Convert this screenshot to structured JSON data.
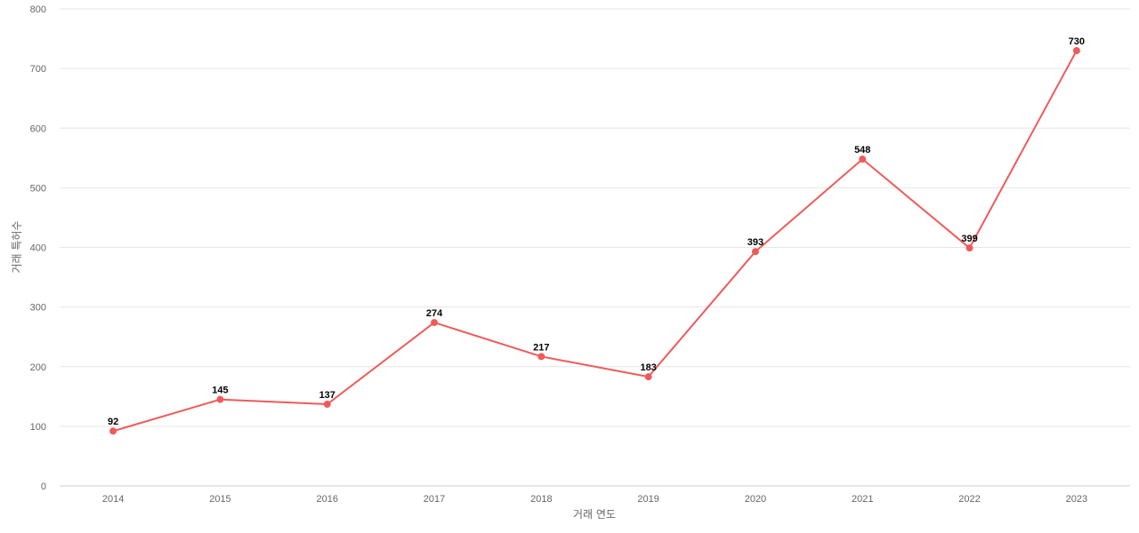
{
  "chart_data": {
    "type": "line",
    "x": [
      "2014",
      "2015",
      "2016",
      "2017",
      "2018",
      "2019",
      "2020",
      "2021",
      "2022",
      "2023"
    ],
    "series": [
      {
        "values": [
          92,
          145,
          137,
          274,
          217,
          183,
          393,
          548,
          399,
          730
        ],
        "color": "#f05a5a"
      }
    ],
    "xlabel": "거래 연도",
    "ylabel": "거래 특허수",
    "ylim": [
      0,
      800
    ],
    "yticks": [
      0,
      100,
      200,
      300,
      400,
      500,
      600,
      700,
      800
    ],
    "grid": true,
    "data_labels": true,
    "legend": false
  }
}
